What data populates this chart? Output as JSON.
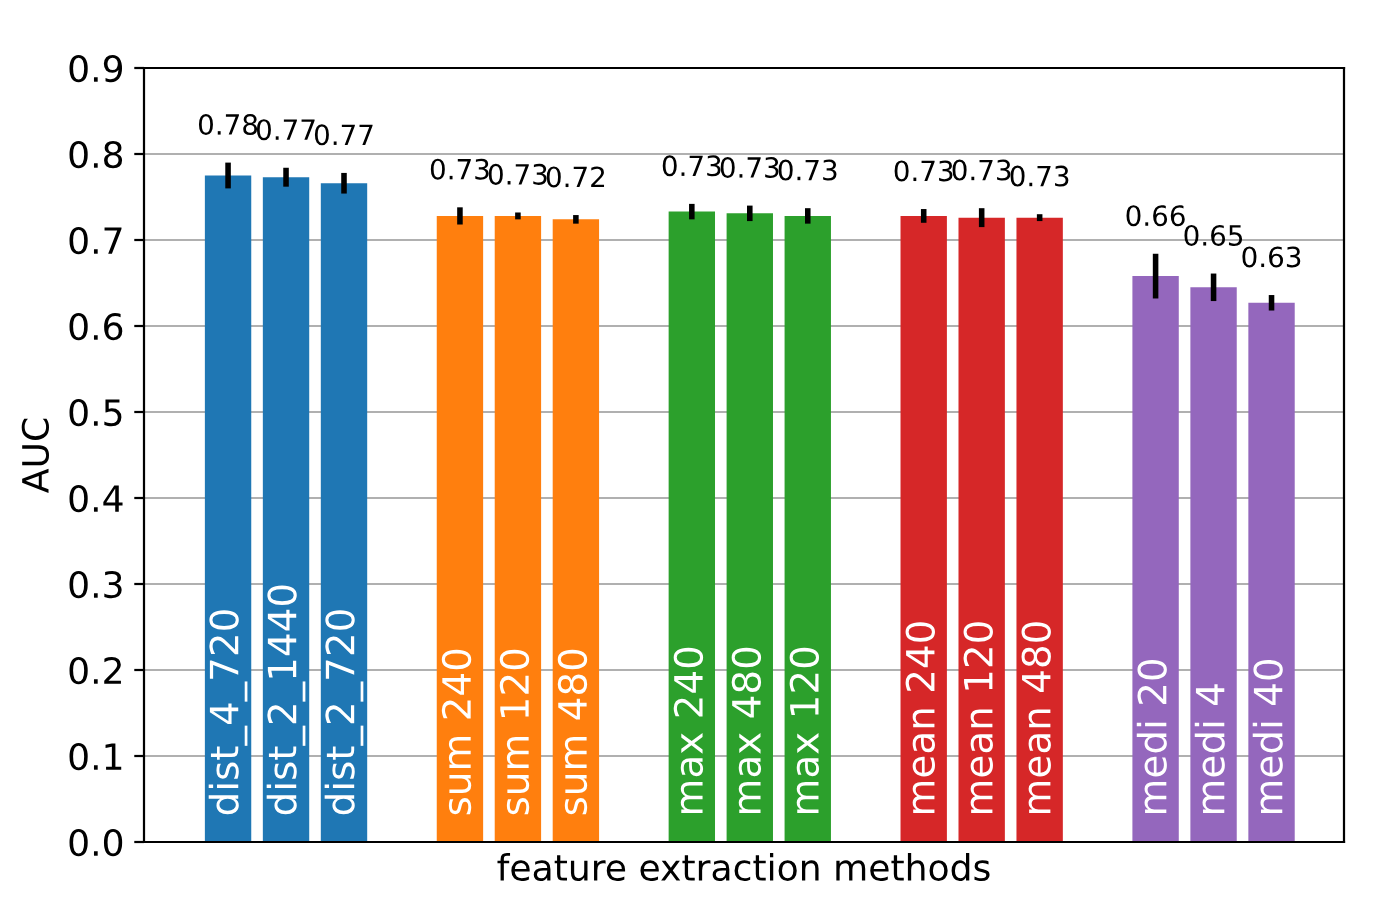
{
  "chart_data": {
    "type": "bar",
    "xlabel": "feature extraction methods",
    "ylabel": "AUC",
    "categories": [
      "dist_4_720",
      "dist_2_1440",
      "dist_2_720",
      null,
      "sum 240",
      "sum 120",
      "sum 480",
      null,
      "max 240",
      "max 480",
      "max 120",
      null,
      "mean 240",
      "mean 120",
      "mean 480",
      null,
      "medi 20",
      "medi 4",
      "medi 40"
    ],
    "series": [
      {
        "values": [
          0.775,
          0.773,
          0.766,
          null,
          0.728,
          0.728,
          0.724,
          null,
          0.733,
          0.731,
          0.728,
          null,
          0.728,
          0.726,
          0.726,
          null,
          0.658,
          0.645,
          0.627
        ],
        "colors": [
          "#1f77b4",
          "#1f77b4",
          "#1f77b4",
          null,
          "#ff7f0e",
          "#ff7f0e",
          "#ff7f0e",
          null,
          "#2ca02c",
          "#2ca02c",
          "#2ca02c",
          null,
          "#d62728",
          "#d62728",
          "#d62728",
          null,
          "#9467bd",
          "#9467bd",
          "#9467bd"
        ],
        "errors": [
          0.015,
          0.011,
          0.012,
          null,
          0.01,
          0.004,
          0.005,
          null,
          0.009,
          0.009,
          0.009,
          null,
          0.008,
          0.011,
          0.004,
          null,
          0.026,
          0.016,
          0.009
        ],
        "value_labels": [
          "0.78",
          "0.77",
          "0.77",
          null,
          "0.73",
          "0.73",
          "0.72",
          null,
          "0.73",
          "0.73",
          "0.73",
          null,
          "0.73",
          "0.73",
          "0.73",
          null,
          "0.66",
          "0.65",
          "0.63"
        ]
      }
    ],
    "ylim": [
      0,
      0.9
    ],
    "yticks": [
      {
        "value": 0,
        "label": "0.0"
      },
      {
        "value": 0.1,
        "label": "0.1"
      },
      {
        "value": 0.2,
        "label": "0.2"
      },
      {
        "value": 0.3,
        "label": "0.3"
      },
      {
        "value": 0.4,
        "label": "0.4"
      },
      {
        "value": 0.5,
        "label": "0.5"
      },
      {
        "value": 0.6,
        "label": "0.6"
      },
      {
        "value": 0.7,
        "label": "0.7"
      },
      {
        "value": 0.8,
        "label": "0.8"
      },
      {
        "value": 0.9,
        "label": "0.9"
      }
    ],
    "grid": "y"
  }
}
